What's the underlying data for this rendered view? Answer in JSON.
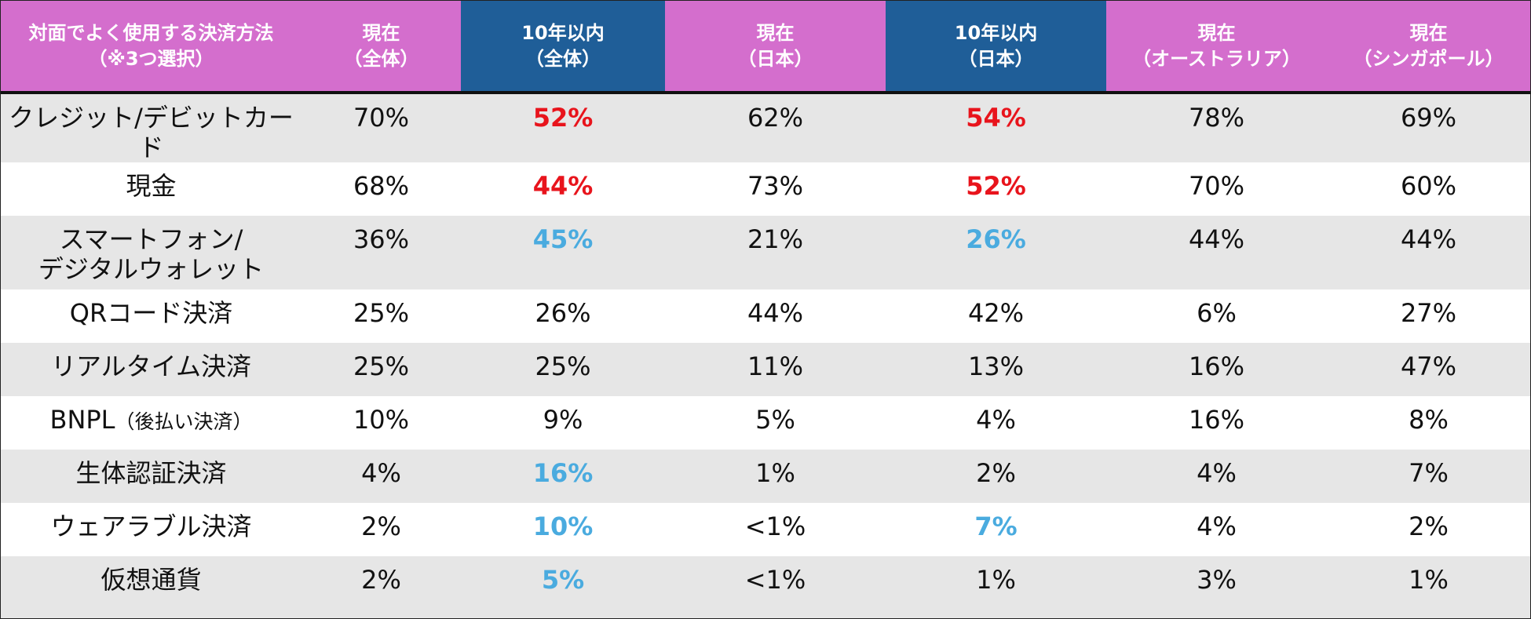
{
  "colors": {
    "header_pink": "#d46ecd",
    "header_blue": "#1f5e98",
    "highlight_red": "#e8141c",
    "highlight_blue": "#4aabdf",
    "row_gray": "#e6e6e6",
    "row_white": "#ffffff"
  },
  "chart_data": {
    "type": "table",
    "columns": [
      {
        "label": "対面でよく使用する決済方法\n（※3つ選択）",
        "color": "#d46ecd"
      },
      {
        "label": "現在\n（全体）",
        "color": "#d46ecd"
      },
      {
        "label": "10年以内\n（全体）",
        "color": "#1f5e98"
      },
      {
        "label": "現在\n（日本）",
        "color": "#d46ecd"
      },
      {
        "label": "10年以内\n（日本）",
        "color": "#1f5e98"
      },
      {
        "label": "現在\n（オーストラリア）",
        "color": "#d46ecd"
      },
      {
        "label": "現在\n（シンガポール）",
        "color": "#d46ecd"
      }
    ],
    "rows": [
      {
        "label": "クレジット/デビットカード",
        "values": [
          "70%",
          "52%",
          "62%",
          "54%",
          "78%",
          "69%"
        ],
        "highlight": [
          "none",
          "red",
          "none",
          "red",
          "none",
          "none"
        ]
      },
      {
        "label": "現金",
        "values": [
          "68%",
          "44%",
          "73%",
          "52%",
          "70%",
          "60%"
        ],
        "highlight": [
          "none",
          "red",
          "none",
          "red",
          "none",
          "none"
        ]
      },
      {
        "label": "スマートフォン/\nデジタルウォレット",
        "values": [
          "36%",
          "45%",
          "21%",
          "26%",
          "44%",
          "44%"
        ],
        "highlight": [
          "none",
          "blue",
          "none",
          "blue",
          "none",
          "none"
        ]
      },
      {
        "label": "QRコード決済",
        "values": [
          "25%",
          "26%",
          "44%",
          "42%",
          "6%",
          "27%"
        ],
        "highlight": [
          "none",
          "none",
          "none",
          "none",
          "none",
          "none"
        ]
      },
      {
        "label": "リアルタイム決済",
        "values": [
          "25%",
          "25%",
          "11%",
          "13%",
          "16%",
          "47%"
        ],
        "highlight": [
          "none",
          "none",
          "none",
          "none",
          "none",
          "none"
        ]
      },
      {
        "label": "BNPL",
        "label_suffix": "（後払い決済）",
        "values": [
          "10%",
          "9%",
          "5%",
          "4%",
          "16%",
          "8%"
        ],
        "highlight": [
          "none",
          "none",
          "none",
          "none",
          "none",
          "none"
        ]
      },
      {
        "label": "生体認証決済",
        "values": [
          "4%",
          "16%",
          "1%",
          "2%",
          "4%",
          "7%"
        ],
        "highlight": [
          "none",
          "blue",
          "none",
          "none",
          "none",
          "none"
        ]
      },
      {
        "label": "ウェアラブル決済",
        "values": [
          "2%",
          "10%",
          "<1%",
          "7%",
          "4%",
          "2%"
        ],
        "highlight": [
          "none",
          "blue",
          "none",
          "blue",
          "none",
          "none"
        ]
      },
      {
        "label": "仮想通貨",
        "values": [
          "2%",
          "5%",
          "<1%",
          "1%",
          "3%",
          "1%"
        ],
        "highlight": [
          "none",
          "blue",
          "none",
          "none",
          "none",
          "none"
        ]
      }
    ]
  }
}
